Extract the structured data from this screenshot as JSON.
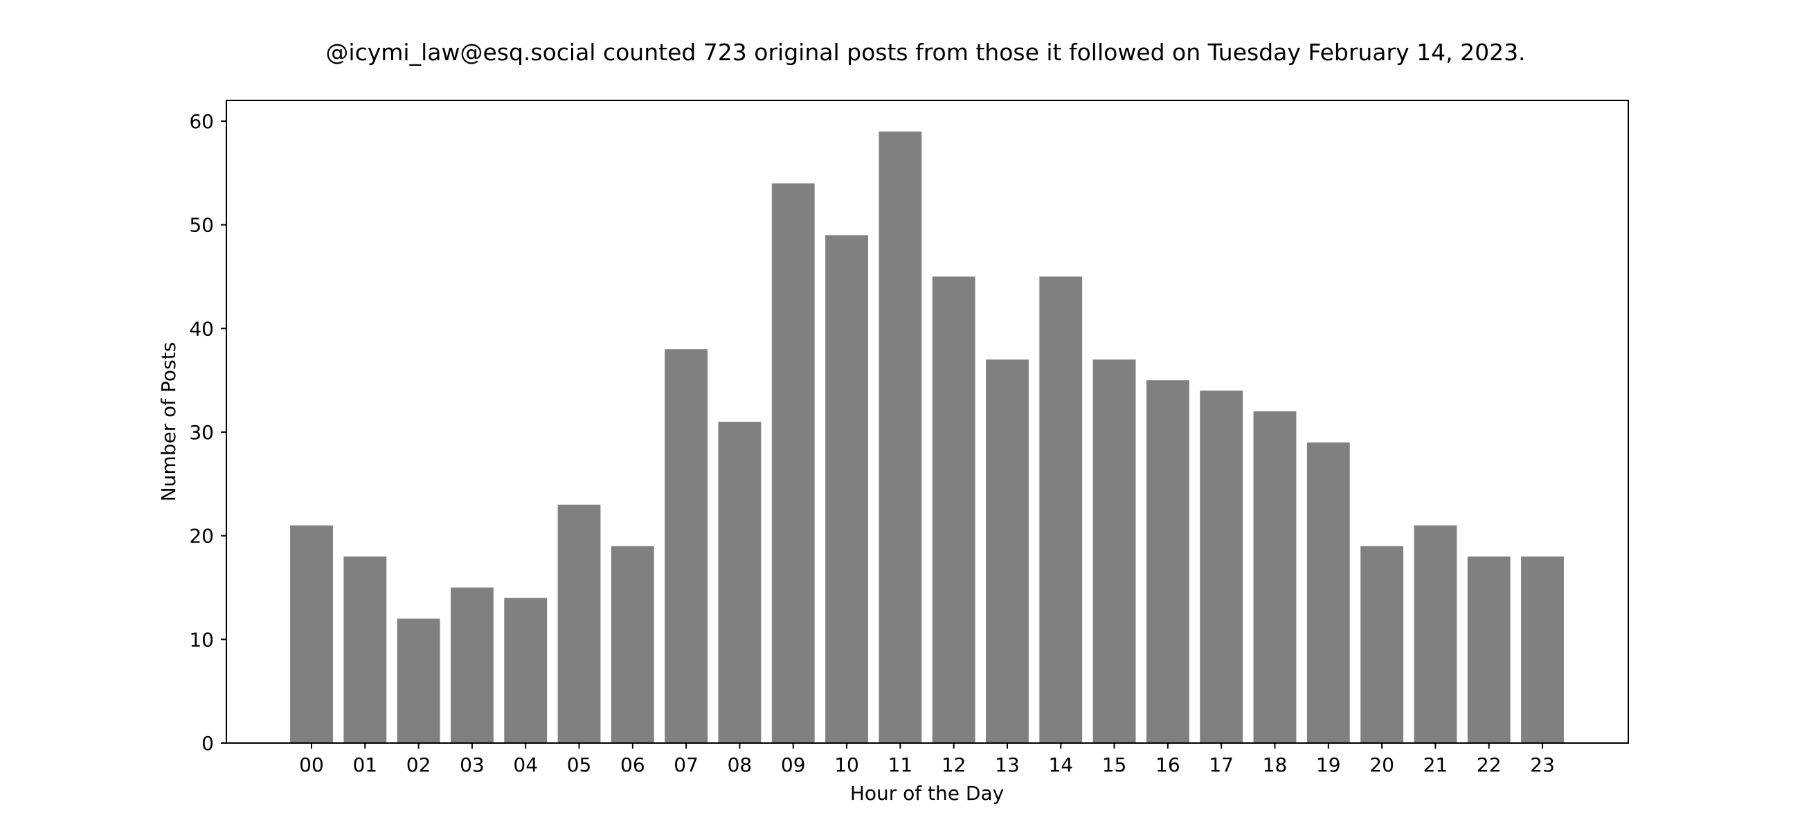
{
  "chart_data": {
    "type": "bar",
    "title": "@icymi_law@esq.social counted 723 original posts from those it followed on Tuesday February 14, 2023.",
    "xlabel": "Hour of the Day",
    "ylabel": "Number of Posts",
    "categories": [
      "00",
      "01",
      "02",
      "03",
      "04",
      "05",
      "06",
      "07",
      "08",
      "09",
      "10",
      "11",
      "12",
      "13",
      "14",
      "15",
      "16",
      "17",
      "18",
      "19",
      "20",
      "21",
      "22",
      "23"
    ],
    "values": [
      21,
      18,
      12,
      15,
      14,
      23,
      19,
      38,
      31,
      54,
      49,
      59,
      45,
      37,
      45,
      37,
      35,
      34,
      32,
      29,
      19,
      21,
      18,
      18
    ],
    "ylim": [
      0,
      62
    ],
    "yticks": [
      0,
      10,
      20,
      30,
      40,
      50,
      60
    ],
    "bar_color": "#808080",
    "grid": false,
    "legend": false
  }
}
